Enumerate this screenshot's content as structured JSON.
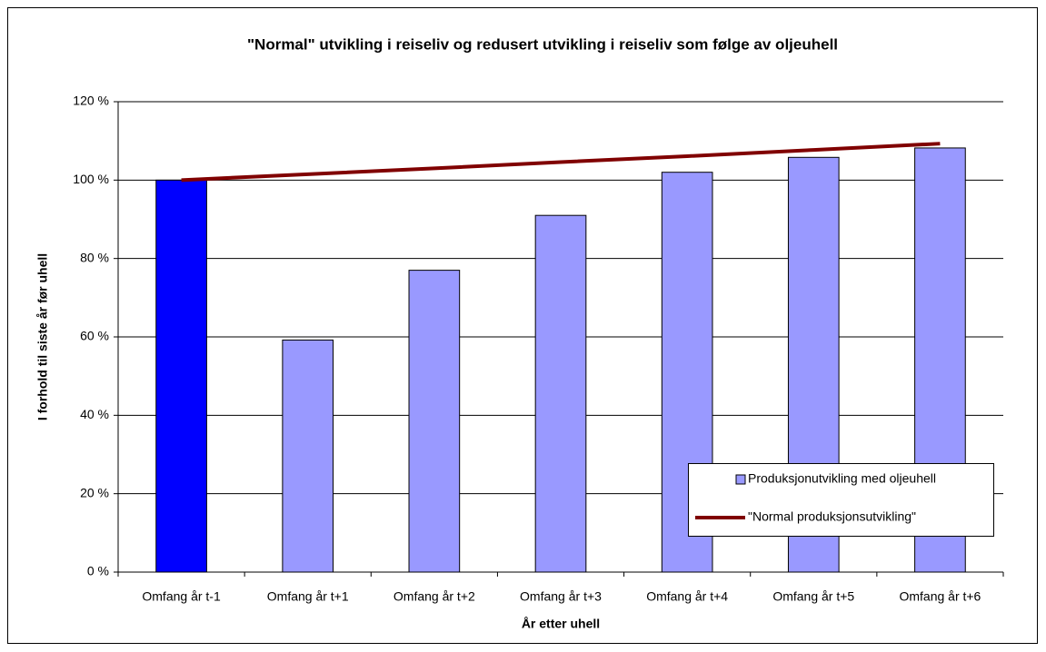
{
  "chart_data": {
    "type": "bar_line",
    "title": "\"Normal\" utvikling i reiseliv og redusert utvikling i reiseliv som følge av oljeuhell",
    "x_label": "År etter uhell",
    "y_label": "I forhold til siste år før uhell",
    "categories": [
      "Omfang år t-1",
      "Omfang år t+1",
      "Omfang år t+2",
      "Omfang år t+3",
      "Omfang år t+4",
      "Omfang år t+5",
      "Omfang år t+6"
    ],
    "series": [
      {
        "name": "Produksjonutvikling med oljeuhell",
        "kind": "bar",
        "color": "#9999ff",
        "point_colors": [
          "#0000ff",
          "#9999ff",
          "#9999ff",
          "#9999ff",
          "#9999ff",
          "#9999ff",
          "#9999ff"
        ],
        "values": [
          100,
          59.2,
          77,
          91,
          102,
          105.8,
          108.2
        ]
      },
      {
        "name": "\"Normal produksjonsutvikling\"",
        "kind": "line",
        "color": "#800000",
        "values": [
          100,
          101.5,
          103.0,
          104.6,
          106.1,
          107.7,
          109.3
        ]
      }
    ],
    "ylim": [
      0,
      120
    ],
    "yticks": [
      {
        "value": 0,
        "label": "0 %"
      },
      {
        "value": 20,
        "label": "20 %"
      },
      {
        "value": 40,
        "label": "40 %"
      },
      {
        "value": 60,
        "label": "60 %"
      },
      {
        "value": 80,
        "label": "80 %"
      },
      {
        "value": 100,
        "label": "100 %"
      },
      {
        "value": 120,
        "label": "120 %"
      }
    ],
    "grid": true,
    "legend": "lower-right"
  }
}
